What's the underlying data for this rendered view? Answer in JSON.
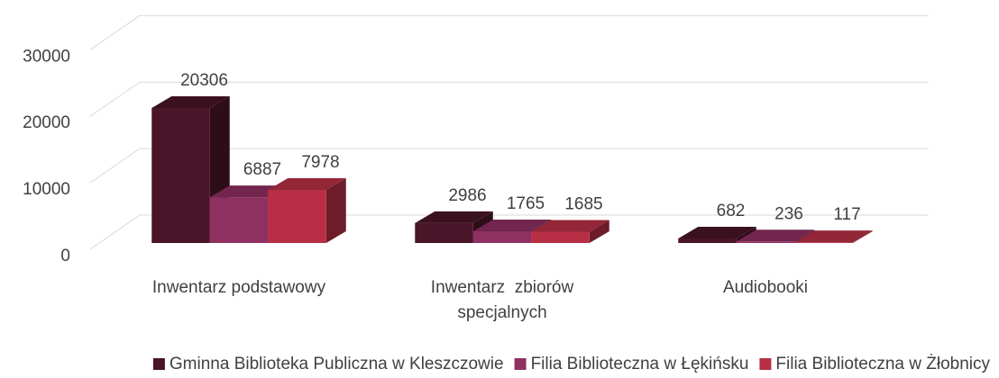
{
  "chart_data": {
    "type": "bar3d",
    "categories": [
      "Inwentarz podstawowy",
      "Inwentarz  zbiorów specjalnych",
      "Audiobooki"
    ],
    "series": [
      {
        "name": "Gminna Biblioteka Publiczna w Kleszczowie",
        "color": "#4a1528",
        "values": [
          20306,
          2986,
          682
        ]
      },
      {
        "name": "Filia Biblioteczna w Łękińsku",
        "color": "#8e3060",
        "values": [
          6887,
          1765,
          236
        ]
      },
      {
        "name": "Filia Biblioteczna w Żłobnicy",
        "color": "#b82f45",
        "values": [
          7978,
          1685,
          117
        ]
      }
    ],
    "ylim": [
      0,
      30000
    ],
    "yticks": [
      0,
      10000,
      20000,
      30000
    ],
    "grid": true,
    "legend": "bottom"
  }
}
